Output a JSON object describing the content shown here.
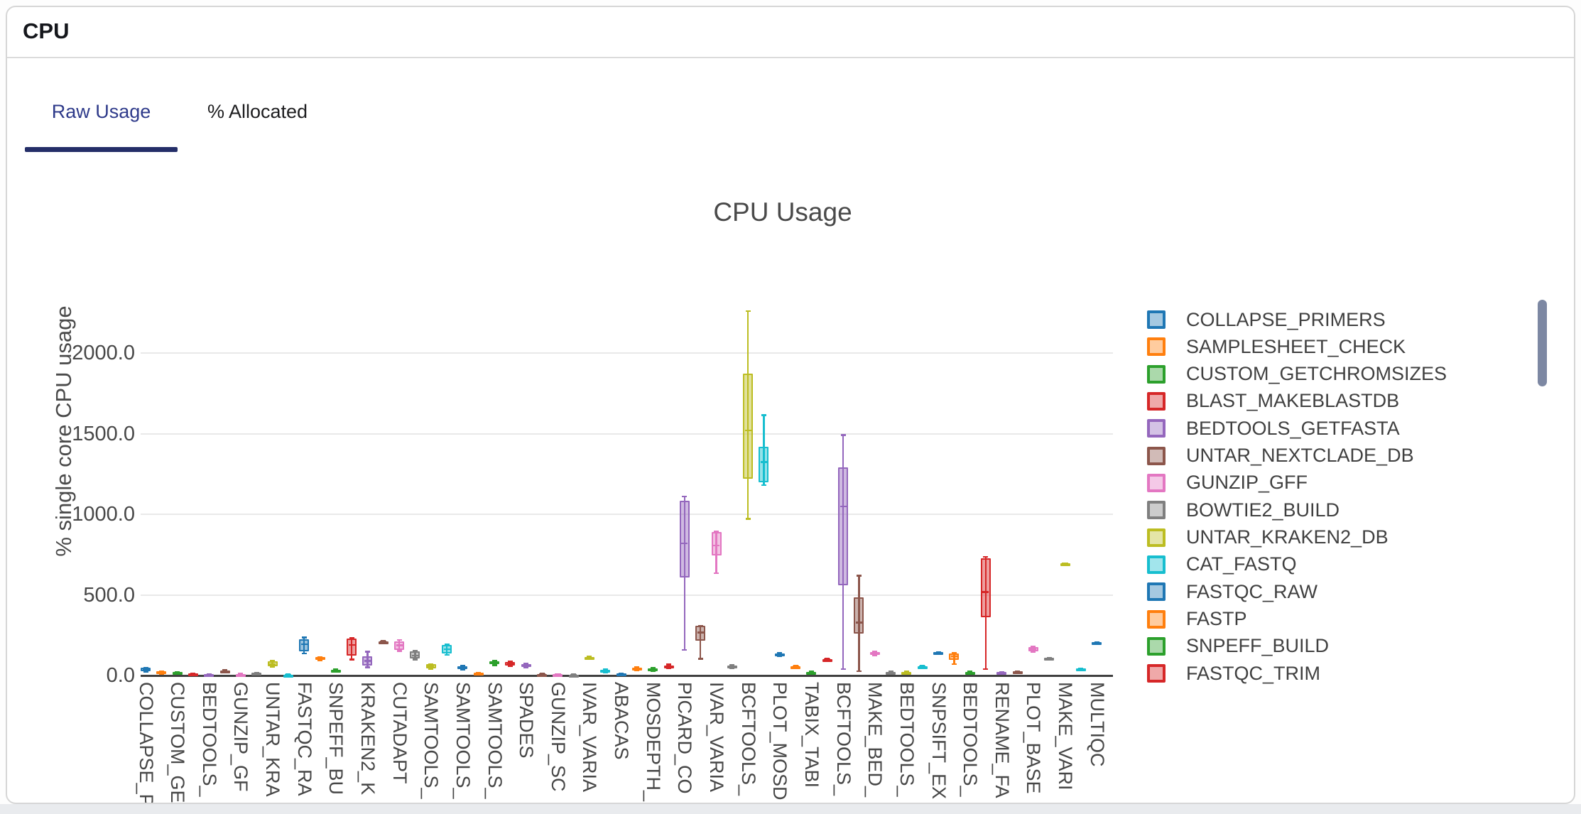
{
  "panel": {
    "title": "CPU"
  },
  "tabs": [
    {
      "label": "Raw Usage",
      "active": true
    },
    {
      "label": "% Allocated",
      "active": false
    }
  ],
  "chart_data": {
    "type": "box",
    "title": "CPU Usage",
    "ylabel": "% single core CPU usage",
    "ylim": [
      0,
      2350
    ],
    "grid": true,
    "legend_position": "right",
    "y_ticks": [
      {
        "value": 0,
        "label": "0.0"
      },
      {
        "value": 500,
        "label": "500.0"
      },
      {
        "value": 1000,
        "label": "1000.0"
      },
      {
        "value": 1500,
        "label": "1500.0"
      },
      {
        "value": 2000,
        "label": "2000.0"
      }
    ],
    "x_tick_labels": [
      "COLLAPSE_P",
      "CUSTOM_GE",
      "BEDTOOLS_",
      "GUNZIP_GF",
      "UNTAR_KRA",
      "FASTQC_RA",
      "SNPEFF_BU",
      "KRAKEN2_K",
      "CUTADAPT",
      "SAMTOOLS_",
      "SAMTOOLS_",
      "SAMTOOLS_",
      "SPADES",
      "GUNZIP_SC",
      "IVAR_VARIA",
      "ABACAS",
      "MOSDEPTH_",
      "PICARD_CO",
      "IVAR_VARIA",
      "BCFTOOLS_",
      "PLOT_MOSD",
      "TABIX_TABI",
      "BCFTOOLS_",
      "MAKE_BED_",
      "BEDTOOLS_",
      "SNPSIFT_EX",
      "BEDTOOLS_",
      "RENAME_FA",
      "PLOT_BASE",
      "MAKE_VARI",
      "MULTIQC"
    ],
    "palette": {
      "blue": "#1f77b4",
      "orange": "#ff7f0e",
      "green": "#2ca02c",
      "red": "#d62728",
      "purple": "#9467bd",
      "brown": "#8c564b",
      "pink": "#e377c2",
      "gray": "#7f7f7f",
      "olive": "#bcbd22",
      "cyan": "#17becf"
    },
    "legend": [
      {
        "label": "COLLAPSE_PRIMERS",
        "color": "blue"
      },
      {
        "label": "SAMPLESHEET_CHECK",
        "color": "orange"
      },
      {
        "label": "CUSTOM_GETCHROMSIZES",
        "color": "green"
      },
      {
        "label": "BLAST_MAKEBLASTDB",
        "color": "red"
      },
      {
        "label": "BEDTOOLS_GETFASTA",
        "color": "purple"
      },
      {
        "label": "UNTAR_NEXTCLADE_DB",
        "color": "brown"
      },
      {
        "label": "GUNZIP_GFF",
        "color": "pink"
      },
      {
        "label": "BOWTIE2_BUILD",
        "color": "gray"
      },
      {
        "label": "UNTAR_KRAKEN2_DB",
        "color": "olive"
      },
      {
        "label": "CAT_FASTQ",
        "color": "cyan"
      },
      {
        "label": "FASTQC_RAW",
        "color": "blue"
      },
      {
        "label": "FASTP",
        "color": "orange"
      },
      {
        "label": "SNPEFF_BUILD",
        "color": "green"
      },
      {
        "label": "FASTQC_TRIM",
        "color": "red"
      }
    ],
    "boxes": [
      {
        "label": "COLLAPSE_P",
        "color": "blue",
        "lo": 25,
        "q1": 30,
        "med": 40,
        "q3": 48,
        "hi": 52
      },
      {
        "label": "",
        "color": "orange",
        "lo": 12,
        "q1": 16,
        "med": 22,
        "q3": 27,
        "hi": 30
      },
      {
        "label": "CUSTOM_GE",
        "color": "green",
        "lo": 10,
        "q1": 14,
        "med": 18,
        "q3": 22,
        "hi": 25
      },
      {
        "label": "",
        "color": "red",
        "lo": 2,
        "q1": 4,
        "med": 8,
        "q3": 14,
        "hi": 16
      },
      {
        "label": "BEDTOOLS_",
        "color": "purple",
        "lo": 0,
        "q1": 1,
        "med": 4,
        "q3": 9,
        "hi": 10
      },
      {
        "label": "",
        "color": "brown",
        "lo": 20,
        "q1": 22,
        "med": 28,
        "q3": 34,
        "hi": 36
      },
      {
        "label": "GUNZIP_GF",
        "color": "pink",
        "lo": 1,
        "q1": 2,
        "med": 6,
        "q3": 12,
        "hi": 13
      },
      {
        "label": "",
        "color": "gray",
        "lo": 4,
        "q1": 6,
        "med": 11,
        "q3": 18,
        "hi": 20
      },
      {
        "label": "UNTAR_KRA",
        "color": "olive",
        "lo": 55,
        "q1": 59,
        "med": 72,
        "q3": 88,
        "hi": 92
      },
      {
        "label": "",
        "color": "cyan",
        "lo": 0,
        "q1": 1,
        "med": 4,
        "q3": 8,
        "hi": 9
      },
      {
        "label": "FASTQC_RA",
        "color": "blue",
        "lo": 137,
        "q1": 151,
        "med": 195,
        "q3": 225,
        "hi": 239
      },
      {
        "label": "",
        "color": "orange",
        "lo": 95,
        "q1": 97,
        "med": 106,
        "q3": 115,
        "hi": 118
      },
      {
        "label": "SNPEFF_BU",
        "color": "green",
        "lo": 22,
        "q1": 24,
        "med": 31,
        "q3": 38,
        "hi": 40
      },
      {
        "label": "",
        "color": "red",
        "lo": 100,
        "q1": 126,
        "med": 191,
        "q3": 229,
        "hi": 235
      },
      {
        "label": "KRAKEN2_K",
        "color": "purple",
        "lo": 52,
        "q1": 63,
        "med": 93,
        "q3": 122,
        "hi": 151
      },
      {
        "label": "",
        "color": "brown",
        "lo": 202,
        "q1": 205,
        "med": 210,
        "q3": 215,
        "hi": 218
      },
      {
        "label": "CUTADAPT",
        "color": "pink",
        "lo": 152,
        "q1": 160,
        "med": 188,
        "q3": 215,
        "hi": 222
      },
      {
        "label": "",
        "color": "gray",
        "lo": 100,
        "q1": 107,
        "med": 125,
        "q3": 151,
        "hi": 155
      },
      {
        "label": "SAMTOOLS_",
        "color": "olive",
        "lo": 42,
        "q1": 47,
        "med": 58,
        "q3": 70,
        "hi": 74
      },
      {
        "label": "",
        "color": "cyan",
        "lo": 128,
        "q1": 138,
        "med": 165,
        "q3": 191,
        "hi": 197
      },
      {
        "label": "SAMTOOLS_",
        "color": "blue",
        "lo": 38,
        "q1": 42,
        "med": 49,
        "q3": 58,
        "hi": 62
      },
      {
        "label": "",
        "color": "orange",
        "lo": 10,
        "q1": 12,
        "med": 15,
        "q3": 19,
        "hi": 21
      },
      {
        "label": "SAMTOOLS_",
        "color": "green",
        "lo": 65,
        "q1": 70,
        "med": 78,
        "q3": 88,
        "hi": 92
      },
      {
        "label": "",
        "color": "red",
        "lo": 58,
        "q1": 63,
        "med": 71,
        "q3": 84,
        "hi": 88
      },
      {
        "label": "SPADES",
        "color": "purple",
        "lo": 50,
        "q1": 55,
        "med": 63,
        "q3": 73,
        "hi": 77
      },
      {
        "label": "",
        "color": "brown",
        "lo": 5,
        "q1": 7,
        "med": 9,
        "q3": 12,
        "hi": 14
      },
      {
        "label": "GUNZIP_SC",
        "color": "pink",
        "lo": 3,
        "q1": 5,
        "med": 8,
        "q3": 10,
        "hi": 12
      },
      {
        "label": "",
        "color": "gray",
        "lo": 1,
        "q1": 3,
        "med": 5,
        "q3": 8,
        "hi": 9
      },
      {
        "label": "IVAR_VARIA",
        "color": "olive",
        "lo": 105,
        "q1": 108,
        "med": 112,
        "q3": 116,
        "hi": 119
      },
      {
        "label": "",
        "color": "cyan",
        "lo": 20,
        "q1": 24,
        "med": 29,
        "q3": 36,
        "hi": 40
      },
      {
        "label": "ABACAS",
        "color": "blue",
        "lo": 4,
        "q1": 6,
        "med": 9,
        "q3": 13,
        "hi": 15
      },
      {
        "label": "",
        "color": "orange",
        "lo": 32,
        "q1": 36,
        "med": 44,
        "q3": 52,
        "hi": 56
      },
      {
        "label": "MOSDEPTH_",
        "color": "green",
        "lo": 28,
        "q1": 31,
        "med": 38,
        "q3": 46,
        "hi": 50
      },
      {
        "label": "",
        "color": "red",
        "lo": 45,
        "q1": 49,
        "med": 56,
        "q3": 65,
        "hi": 70
      },
      {
        "label": "PICARD_CO",
        "color": "purple",
        "lo": 159,
        "q1": 610,
        "med": 821,
        "q3": 1083,
        "hi": 1112
      },
      {
        "label": "",
        "color": "brown",
        "lo": 103,
        "q1": 218,
        "med": 269,
        "q3": 308,
        "hi": 308
      },
      {
        "label": "IVAR_VARIA",
        "color": "pink",
        "lo": 635,
        "q1": 745,
        "med": 807,
        "q3": 892,
        "hi": 895
      },
      {
        "label": "",
        "color": "gray",
        "lo": 45,
        "q1": 50,
        "med": 56,
        "q3": 62,
        "hi": 66
      },
      {
        "label": "BCFTOOLS_",
        "color": "olive",
        "lo": 970,
        "q1": 1220,
        "med": 1520,
        "q3": 1870,
        "hi": 2260
      },
      {
        "label": "",
        "color": "cyan",
        "lo": 1180,
        "q1": 1200,
        "med": 1325,
        "q3": 1420,
        "hi": 1615
      },
      {
        "label": "PLOT_MOSD",
        "color": "blue",
        "lo": 122,
        "q1": 126,
        "med": 132,
        "q3": 138,
        "hi": 142
      },
      {
        "label": "",
        "color": "orange",
        "lo": 48,
        "q1": 51,
        "med": 56,
        "q3": 61,
        "hi": 64
      },
      {
        "label": "TABIX_TABI",
        "color": "green",
        "lo": 10,
        "q1": 13,
        "med": 19,
        "q3": 25,
        "hi": 28
      },
      {
        "label": "",
        "color": "red",
        "lo": 94,
        "q1": 97,
        "med": 100,
        "q3": 104,
        "hi": 107
      },
      {
        "label": "BCFTOOLS_",
        "color": "purple",
        "lo": 41,
        "q1": 562,
        "med": 1050,
        "q3": 1291,
        "hi": 1493
      },
      {
        "label": "",
        "color": "brown",
        "lo": 27,
        "q1": 261,
        "med": 330,
        "q3": 484,
        "hi": 621
      },
      {
        "label": "MAKE_BED_",
        "color": "pink",
        "lo": 124,
        "q1": 128,
        "med": 137,
        "q3": 146,
        "hi": 150
      },
      {
        "label": "",
        "color": "gray",
        "lo": 12,
        "q1": 15,
        "med": 19,
        "q3": 24,
        "hi": 26
      },
      {
        "label": "BEDTOOLS_",
        "color": "olive",
        "lo": 11,
        "q1": 14,
        "med": 19,
        "q3": 24,
        "hi": 27
      },
      {
        "label": "",
        "color": "cyan",
        "lo": 48,
        "q1": 51,
        "med": 56,
        "q3": 61,
        "hi": 64
      },
      {
        "label": "SNPSIFT_EX",
        "color": "blue",
        "lo": 134,
        "q1": 137,
        "med": 141,
        "q3": 145,
        "hi": 148
      },
      {
        "label": "",
        "color": "orange",
        "lo": 70,
        "q1": 100,
        "med": 120,
        "q3": 138,
        "hi": 142
      },
      {
        "label": "BEDTOOLS_",
        "color": "green",
        "lo": 10,
        "q1": 13,
        "med": 19,
        "q3": 25,
        "hi": 28
      },
      {
        "label": "",
        "color": "red",
        "lo": 41,
        "q1": 364,
        "med": 518,
        "q3": 728,
        "hi": 738
      },
      {
        "label": "RENAME_FA",
        "color": "purple",
        "lo": 14,
        "q1": 16,
        "med": 19,
        "q3": 23,
        "hi": 25
      },
      {
        "label": "",
        "color": "brown",
        "lo": 19,
        "q1": 21,
        "med": 24,
        "q3": 27,
        "hi": 29
      },
      {
        "label": "PLOT_BASE",
        "color": "pink",
        "lo": 148,
        "q1": 151,
        "med": 165,
        "q3": 179,
        "hi": 183
      },
      {
        "label": "",
        "color": "gray",
        "lo": 101,
        "q1": 103,
        "med": 107,
        "q3": 110,
        "hi": 113
      },
      {
        "label": "MAKE_VARI",
        "color": "olive",
        "lo": 690,
        "q1": 692,
        "med": 694,
        "q3": 697,
        "hi": 699
      },
      {
        "label": "",
        "color": "cyan",
        "lo": 37,
        "q1": 39,
        "med": 41,
        "q3": 44,
        "hi": 46
      },
      {
        "label": "MULTIQC",
        "color": "blue",
        "lo": 196,
        "q1": 199,
        "med": 203,
        "q3": 207,
        "hi": 210
      }
    ]
  }
}
